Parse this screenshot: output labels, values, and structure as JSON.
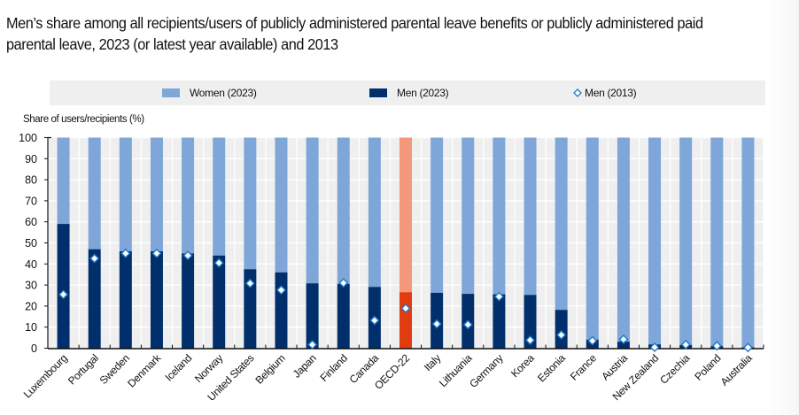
{
  "title": "Men’s share among all recipients/users of publicly administered parental leave benefits or publicly administered paid parental leave, 2023 (or latest year available) and 2013",
  "legend": {
    "items": [
      {
        "label": "Women (2023)",
        "color": "#7ea6d8",
        "marker": "square"
      },
      {
        "label": "Men (2023)",
        "color": "#002f6c",
        "marker": "square"
      },
      {
        "label": "Men (2013)",
        "color": "#1f77c8",
        "marker": "diamond-outline"
      }
    ]
  },
  "chart_data": {
    "type": "bar",
    "stacked": true,
    "title": "Men’s share among all recipients/users of publicly administered parental leave benefits or publicly administered paid parental leave, 2023 (or latest year available) and 2013",
    "xlabel": "",
    "ylabel": "Share of users/recipients (%)",
    "ylim": [
      0,
      100
    ],
    "yticks": [
      0,
      10,
      20,
      30,
      40,
      50,
      60,
      70,
      80,
      90,
      100
    ],
    "grid": true,
    "legend_position": "top",
    "highlight_category": "OECD-22",
    "colors": {
      "women": "#7ea6d8",
      "men": "#002f6c",
      "women_highlight": "#f4977a",
      "men_highlight": "#e03c10",
      "diamond_fill": "#ffffff",
      "diamond_stroke": "#1f77c8",
      "plot_bg": "#efefef"
    },
    "categories": [
      "Luxembourg",
      "Portugal",
      "Sweden",
      "Denmark",
      "Iceland",
      "Norway",
      "United States",
      "Belgium",
      "Japan",
      "Finland",
      "Canada",
      "OECD-22",
      "Italy",
      "Lithuania",
      "Germany",
      "Korea",
      "Estonia",
      "France",
      "Austria",
      "New Zealand",
      "Czechia",
      "Poland",
      "Australia"
    ],
    "series": [
      {
        "name": "Men (2023)",
        "type": "bar",
        "values": [
          59,
          47,
          46,
          46,
          45,
          44,
          37.5,
          36,
          30.8,
          30.5,
          29.1,
          26.6,
          26.3,
          25.8,
          25.6,
          25.3,
          18.2,
          4.1,
          3.1,
          1.8,
          1.5,
          1.0,
          0.5
        ]
      },
      {
        "name": "Women (2023)",
        "type": "bar",
        "values": [
          41,
          53,
          54,
          54,
          55,
          56,
          62.5,
          64,
          69.2,
          69.5,
          70.9,
          73.4,
          73.7,
          74.2,
          74.4,
          74.7,
          81.8,
          95.9,
          96.9,
          98.2,
          98.5,
          99.0,
          99.5
        ]
      },
      {
        "name": "Men (2013)",
        "type": "marker",
        "values": [
          25.5,
          42.6,
          45,
          45,
          44,
          40.5,
          30.8,
          27.6,
          1.7,
          31,
          13.2,
          18.9,
          11.5,
          11.2,
          24.5,
          3.8,
          6.3,
          3.5,
          4.2,
          0.4,
          1.7,
          1.1,
          0.3
        ]
      }
    ]
  }
}
